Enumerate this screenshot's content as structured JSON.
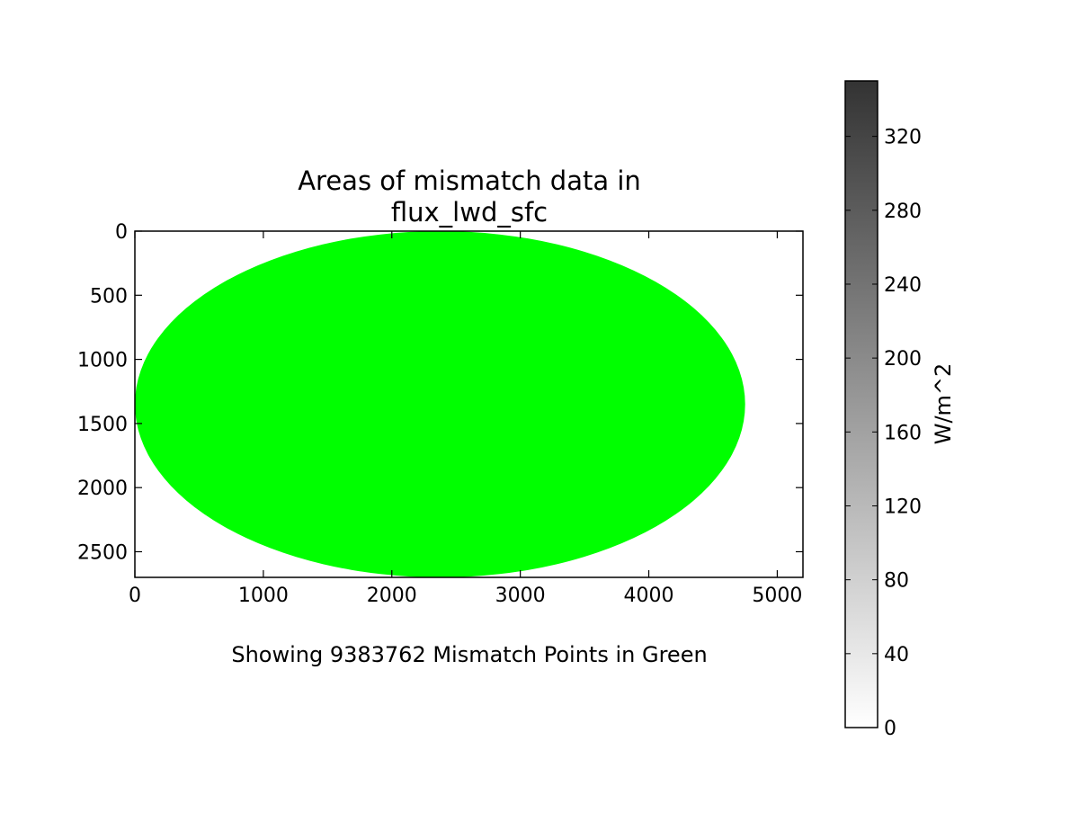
{
  "chart_data": {
    "type": "heatmap",
    "title_lines": [
      "Areas of mismatch data in",
      "flux_lwd_sfc"
    ],
    "caption": "Showing 9383762 Mismatch Points in Green",
    "xlim": [
      0,
      5200
    ],
    "ylim": [
      2700,
      0
    ],
    "y_inverted": true,
    "x_ticks": [
      0,
      1000,
      2000,
      3000,
      4000,
      5000
    ],
    "y_ticks": [
      0,
      500,
      1000,
      1500,
      2000,
      2500
    ],
    "mismatch_region": {
      "shape": "ellipse",
      "x_range": [
        0,
        4750
      ],
      "y_range": [
        0,
        2700
      ],
      "center_x": 2375,
      "center_y": 1350,
      "color": "#00ff00"
    },
    "mismatch_count": 9383762,
    "grid": false,
    "colorbar": {
      "label": "W/m^2",
      "range": [
        0,
        350
      ],
      "ticks": [
        0,
        40,
        80,
        120,
        160,
        200,
        240,
        280,
        320
      ],
      "color_low": "#ffffff",
      "color_high": "#333333"
    }
  }
}
